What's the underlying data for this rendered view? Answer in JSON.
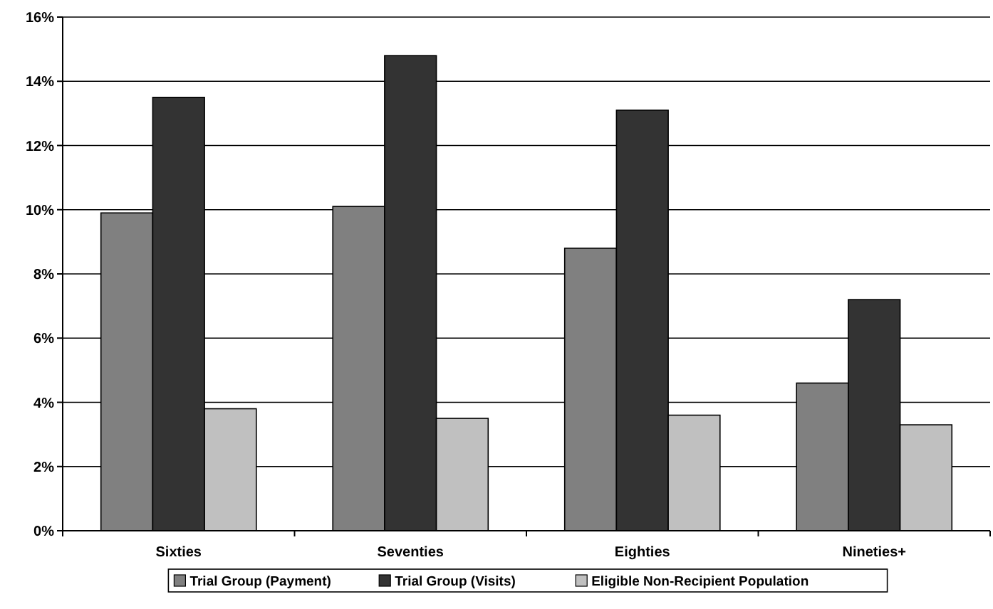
{
  "chart_data": {
    "type": "bar",
    "categories": [
      "Sixties",
      "Seventies",
      "Eighties",
      "Nineties+"
    ],
    "series": [
      {
        "name": "Trial Group (Payment)",
        "color": "#808080",
        "values": [
          9.9,
          10.1,
          8.8,
          4.6
        ]
      },
      {
        "name": "Trial Group (Visits)",
        "color": "#333333",
        "values": [
          13.5,
          14.8,
          13.1,
          7.2
        ]
      },
      {
        "name": "Eligible Non-Recipient Population",
        "color": "#c0c0c0",
        "values": [
          3.8,
          3.5,
          3.6,
          3.3
        ]
      }
    ],
    "ylim": [
      0,
      16
    ],
    "yticks": [
      {
        "value": 0,
        "label": "0%"
      },
      {
        "value": 2,
        "label": "2%"
      },
      {
        "value": 4,
        "label": "4%"
      },
      {
        "value": 6,
        "label": "6%"
      },
      {
        "value": 8,
        "label": "8%"
      },
      {
        "value": 10,
        "label": "10%"
      },
      {
        "value": 12,
        "label": "12%"
      },
      {
        "value": 14,
        "label": "14%"
      },
      {
        "value": 16,
        "label": "16%"
      }
    ],
    "grid": "y",
    "legend": "bottom"
  }
}
